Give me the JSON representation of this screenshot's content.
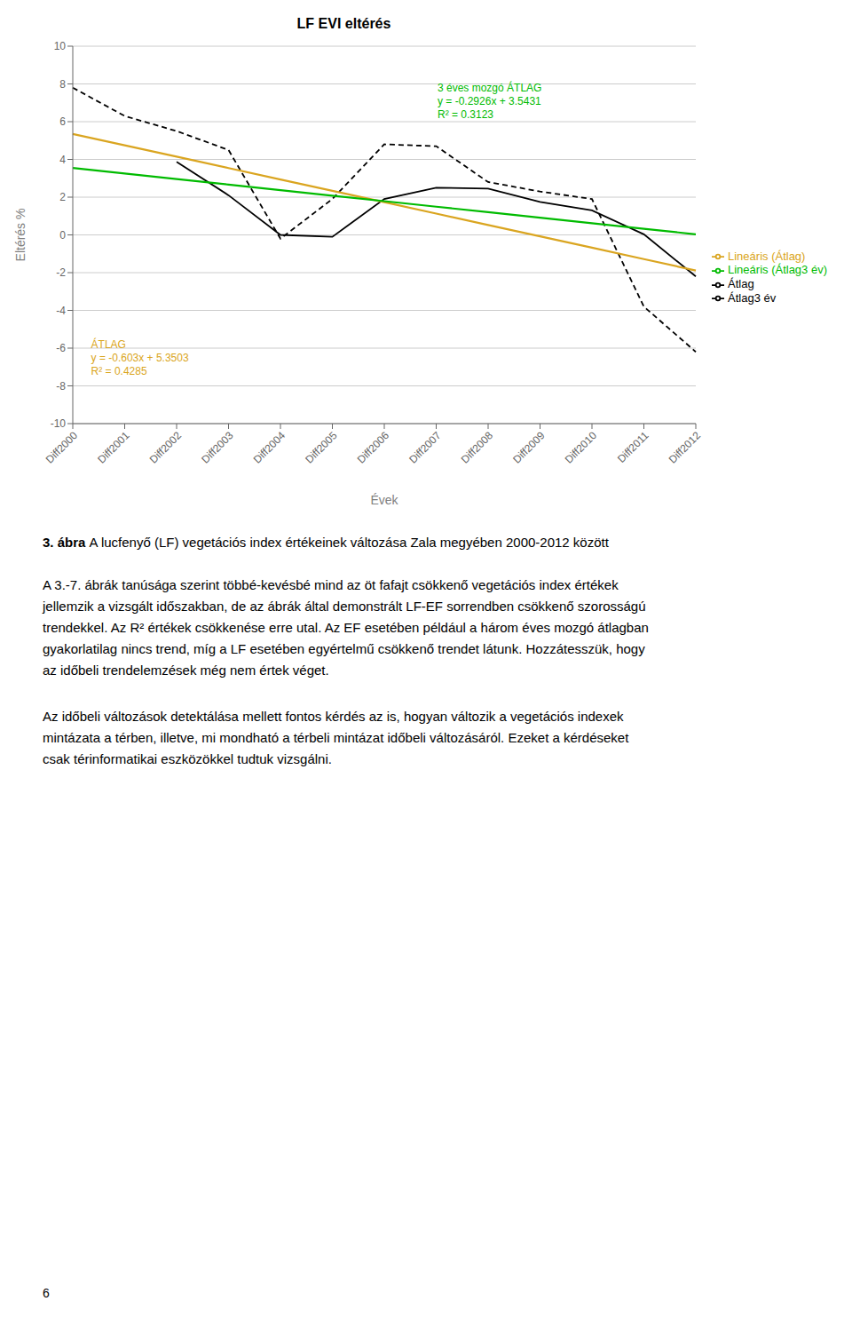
{
  "chart_data": {
    "type": "line",
    "title": "LF EVI eltérés",
    "xlabel": "Évek",
    "ylabel": "Eltérés %",
    "categories": [
      "Diff2000",
      "Diff2001",
      "Diff2002",
      "Diff2003",
      "Diff2004",
      "Diff2005",
      "Diff2006",
      "Diff2007",
      "Diff2008",
      "Diff2009",
      "Diff2010",
      "Diff2011",
      "Diff2012"
    ],
    "series": [
      {
        "name": "Átlag",
        "color": "#000000",
        "line_style": "dashed",
        "values": [
          7.8,
          6.3,
          5.5,
          4.5,
          -0.2,
          1.9,
          4.8,
          4.7,
          2.8,
          2.3,
          1.9,
          -3.8,
          -6.2
        ]
      },
      {
        "name": "Átlag3 év",
        "color": "#000000",
        "line_style": "solid",
        "values": [
          null,
          null,
          3.87,
          2.1,
          0.0,
          -0.1,
          1.9,
          2.5,
          2.45,
          1.75,
          1.3,
          0.03,
          -2.2
        ]
      },
      {
        "name": "Lineáris (Átlag)",
        "color": "#DAA520",
        "line_style": "solid",
        "values": [
          5.3503,
          4.7473,
          4.1443,
          3.5413,
          2.9383,
          2.3353,
          1.7323,
          1.1293,
          0.5263,
          -0.0767,
          -0.6797,
          -1.2827,
          -1.8857
        ]
      },
      {
        "name": "Lineáris (Átlag3 év)",
        "color": "#00BB00",
        "line_style": "solid",
        "values": [
          3.5431,
          3.2505,
          2.9579,
          2.6653,
          2.3727,
          2.0801,
          1.7875,
          1.4949,
          1.2023,
          0.9097,
          0.6171,
          0.3245,
          0.0319
        ]
      }
    ],
    "ylim": [
      -10,
      10
    ],
    "yticks": [
      -10,
      -8,
      -6,
      -4,
      -2,
      0,
      2,
      4,
      6,
      8,
      10
    ],
    "grid": "y",
    "legend": "right",
    "annotations": [
      {
        "text": "ÁTLAG\ny = -0.603x + 5.3503\nR² = 0.4285",
        "color": "#DAA520"
      },
      {
        "text": "3 éves mozgó ÁTLAG\ny = -0.2926x + 3.5431\nR² = 0.3123",
        "color": "#00BB00"
      }
    ],
    "caption_label": "3. ábra ",
    "caption": "A lucfenyő (LF) vegetációs index értékeinek változása Zala megyében 2000-2012 között",
    "paragraphs": [
      "A 3.-7. ábrák tanúsága szerint többé-kevésbé mind az öt fafajt csökkenő vegetációs index értékek\njellemzik a vizsgált időszakban, de az ábrák által demonstrált LF-EF sorrendben csökkenő szorosságú\ntrendekkel. Az R² értékek csökkenése erre utal. Az EF esetében például a három éves mozgó átlagban\ngyakorlatilag nincs trend, míg a LF esetében egyértelmű csökkenő trendet látunk. Hozzátesszük, hogy\naz időbeli trendelemzések még nem értek véget.",
      "Az időbeli változások detektálása mellett fontos kérdés az is, hogyan változik a vegetációs indexek\nmintázata a térben, illetve, mi mondható a térbeli mintázat időbeli változásáról. Ezeket a kérdéseket\ncsak térinformatikai eszközökkel tudtuk vizsgálni."
    ],
    "page_number": "6"
  }
}
